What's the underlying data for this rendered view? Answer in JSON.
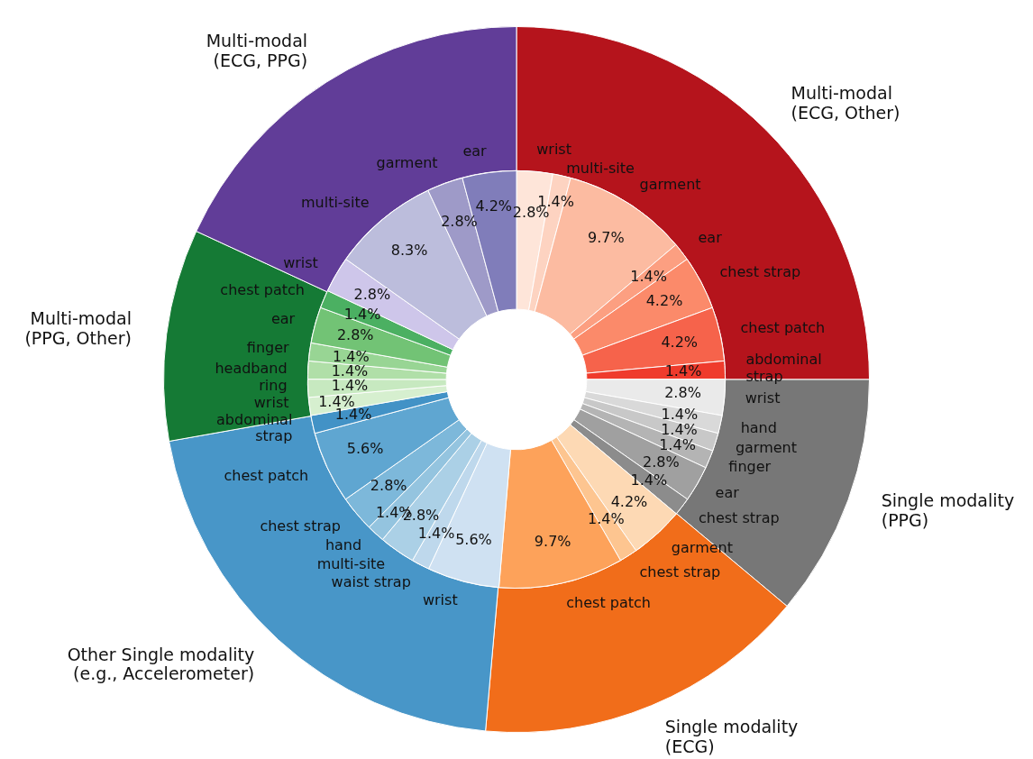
{
  "chart_data": [
    {
      "type": "donut",
      "categories": [
        "Multi-modal\n(ECG, Other)",
        "Single modality\n(PPG)",
        "Single modality\n(ECG)",
        "Other Single modality\n(e.g., Accelerometer)",
        "Multi-modal\n(PPG, Other)",
        "Multi-modal\n(ECG, PPG)"
      ],
      "values": [
        25.0,
        11.1,
        15.3,
        20.8,
        9.7,
        18.1
      ],
      "colors": [
        "#b5141c",
        "#777777",
        "#f16d1a",
        "#4896c8",
        "#157a35",
        "#613d98"
      ],
      "legend": false
    },
    {
      "type": "donut",
      "categories": [
        "wrist",
        "multi-site",
        "garment",
        "ear",
        "chest strap",
        "chest patch",
        "abdominal\nstrap",
        "wrist",
        "hand",
        "garment",
        "finger",
        "ear",
        "chest strap",
        "garment",
        "chest strap",
        "chest patch",
        "wrist",
        "waist strap",
        "multi-site",
        "hand",
        "chest strap",
        "chest patch",
        "abdominal\nstrap",
        "wrist",
        "ring",
        "headband",
        "finger",
        "ear",
        "chest patch",
        "wrist",
        "multi-site",
        "garment",
        "ear"
      ],
      "values": [
        2.8,
        1.4,
        9.7,
        1.4,
        4.2,
        4.2,
        1.4,
        2.8,
        1.4,
        1.4,
        1.4,
        2.8,
        1.4,
        4.2,
        1.4,
        9.7,
        5.6,
        1.4,
        2.8,
        1.4,
        2.8,
        5.6,
        1.4,
        1.4,
        1.4,
        1.4,
        1.4,
        2.8,
        1.4,
        2.8,
        8.3,
        2.8,
        4.2
      ],
      "value_labels": [
        "2.8%",
        "1.4%",
        "9.7%",
        "1.4%",
        "4.2%",
        "4.2%",
        "1.4%",
        "2.8%",
        "1.4%",
        "1.4%",
        "1.4%",
        "2.8%",
        "1.4%",
        "4.2%",
        "1.4%",
        "9.7%",
        "5.6%",
        "1.4%",
        "2.8%",
        "1.4%",
        "2.8%",
        "5.6%",
        "1.4%",
        "1.4%",
        "1.4%",
        "1.4%",
        "1.4%",
        "2.8%",
        "1.4%",
        "2.8%",
        "8.3%",
        "2.8%",
        "4.2%"
      ],
      "colors": [
        "#fee5d9",
        "#fdd3c1",
        "#fcbba1",
        "#fc9f81",
        "#fb8a6a",
        "#f6634b",
        "#ef3b2c",
        "#eaeaea",
        "#d9d9d9",
        "#c8c8c8",
        "#b4b4b4",
        "#a0a0a0",
        "#8c8c8c",
        "#fdd9b4",
        "#fdc590",
        "#fda25a",
        "#cfe1f2",
        "#bed8ec",
        "#abd0e6",
        "#94c4df",
        "#7db8da",
        "#5fa6d1",
        "#4292c6",
        "#d6efcf",
        "#c7e9c0",
        "#b0dfa8",
        "#98d594",
        "#72c375",
        "#4bb062",
        "#cec6ea",
        "#bcbddc",
        "#9e9ac8",
        "#807dba"
      ],
      "legend": false
    }
  ]
}
